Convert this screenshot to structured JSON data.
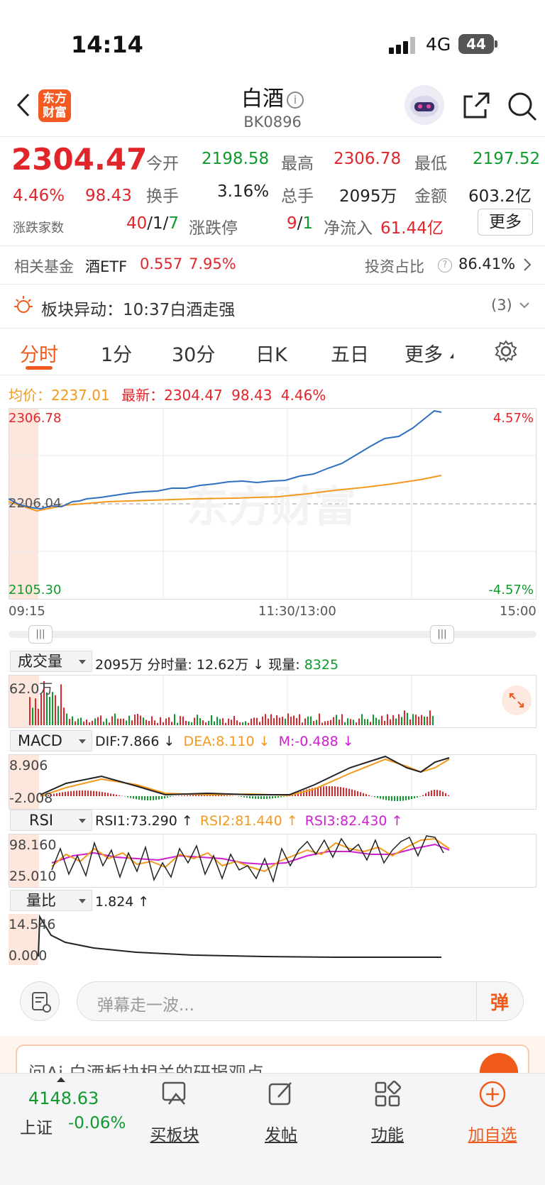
{
  "status": {
    "time": "14:14",
    "network": "4G",
    "battery": "44"
  },
  "header": {
    "title": "白酒",
    "code": "BK0896",
    "logo_text": "东方财富"
  },
  "quote": {
    "price": "2304.47",
    "change_pct": "4.46%",
    "change": "98.43",
    "open_label": "今开",
    "open": "2198.58",
    "high_label": "最高",
    "high": "2306.78",
    "low_label": "最低",
    "low": "2197.52",
    "turnover_label": "换手",
    "turnover": "3.16%",
    "volume_label": "总手",
    "volume": "2095万",
    "amount_label": "金额",
    "amount": "603.2亿",
    "breadth_label": "涨跌家数",
    "breadth_up": "40",
    "breadth_flat": "/1/",
    "breadth_down": "7",
    "limit_label": "涨跌停",
    "limit_up": "9",
    "limit_sep": "/",
    "limit_down": "1",
    "inflow_label": "净流入",
    "inflow": "61.44亿",
    "more_btn": "更多"
  },
  "fund": {
    "label": "相关基金",
    "name": "酒ETF",
    "price": "0.557",
    "pct": "7.95%",
    "ratio_label": "投资占比",
    "ratio": "86.41%"
  },
  "alert": {
    "text": "板块异动：10:37白酒走强",
    "count": "(3)"
  },
  "tabs": [
    "分时",
    "1分",
    "30分",
    "日K",
    "五日",
    "更多"
  ],
  "avg_line": {
    "avg_label": "均价：",
    "avg": "2237.01",
    "latest_label": "最新：",
    "latest": "2304.47",
    "chg": "98.43",
    "pct": "4.46%"
  },
  "chart": {
    "y_high": "2306.78",
    "y_mid": "2206.04",
    "y_low": "2105.30",
    "pct_high": "4.57%",
    "pct_low": "-4.57%",
    "t_start": "09:15",
    "t_mid": "11:30/13:00",
    "t_end": "15:00",
    "watermark": "东方财富"
  },
  "volume": {
    "selector": "成交量",
    "total": "2095万",
    "tick_label": "分时量:",
    "tick": "12.62万 ↓",
    "now_label": "现量:",
    "now": "8325",
    "axis_max": "62.0万"
  },
  "macd": {
    "selector": "MACD",
    "dif": "DIF:7.866 ↓",
    "dea": "DEA:8.110 ↓",
    "m": "M:-0.488 ↓",
    "axis_max": "8.906",
    "axis_min": "-2.008"
  },
  "rsi": {
    "selector": "RSI",
    "rsi1": "RSI1:73.290 ↑",
    "rsi2": "RSI2:81.440 ↑",
    "rsi3": "RSI3:82.430 ↑",
    "axis_max": "98.160",
    "axis_min": "25.010"
  },
  "vr": {
    "selector": "量比",
    "value": "1.824 ↑",
    "axis_max": "14.546",
    "axis_min": "0.000"
  },
  "danmu": {
    "placeholder": "弹幕走一波...",
    "btn": "弹"
  },
  "ai_banner": {
    "text": "问Ai  白酒板块相关的研报观点"
  },
  "nav": {
    "index_value": "4148.63",
    "index_name": "上证",
    "index_pct": "-0.06%",
    "items": [
      "买板块",
      "发帖",
      "功能",
      "加自选"
    ]
  },
  "colors": {
    "accent": "#f05a1a",
    "up": "#e0262b",
    "down": "#0f9a2c",
    "price_line": "#2f6fc0",
    "avg_line": "#f39a1e"
  }
}
